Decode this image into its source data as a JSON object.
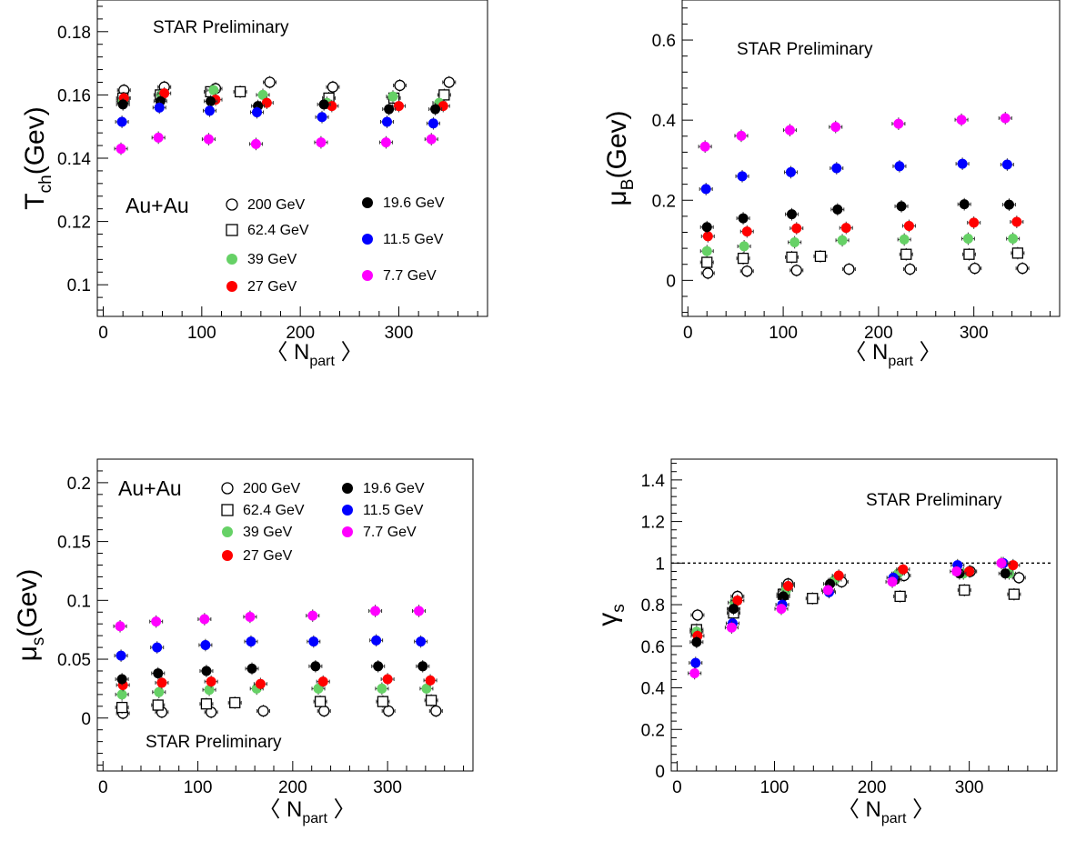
{
  "chart_data": [
    {
      "type": "scatter",
      "id": "tch",
      "ylabel_main": "T",
      "ylabel_sub": "ch",
      "ylabel_unit": "(Gev)",
      "xlabel_main": "N",
      "xlabel_sub": "part",
      "xlim": [
        -6,
        390
      ],
      "ylim": [
        0.09,
        0.19
      ],
      "xticks": [
        0,
        100,
        200,
        300
      ],
      "yticks": [
        0.1,
        0.12,
        0.14,
        0.16,
        0.18
      ],
      "ytick_labels": [
        "0.1",
        "0.12",
        "0.14",
        "0.16",
        "0.18"
      ],
      "ref_line": null,
      "annotations": [
        {
          "text": "STAR Preliminary"
        },
        {
          "text": "Au+Au"
        }
      ],
      "legend": [
        {
          "series": "s200",
          "label": "200 GeV"
        },
        {
          "series": "s62",
          "label": "62.4 GeV"
        },
        {
          "series": "s39",
          "label": "39 GeV"
        },
        {
          "series": "s27",
          "label": "27 GeV"
        },
        {
          "series": "s19",
          "label": "19.6 GeV"
        },
        {
          "series": "s11",
          "label": "11.5 GeV"
        },
        {
          "series": "s7",
          "label": "7.7 GeV"
        }
      ],
      "series": [
        {
          "key": "s200",
          "label": "200 GeV",
          "x": [
            21,
            62,
            114,
            169,
            233,
            301,
            351
          ],
          "y": [
            0.1615,
            0.1625,
            0.162,
            0.164,
            0.1625,
            0.163,
            0.164
          ]
        },
        {
          "key": "s62",
          "label": "62.4 GeV",
          "x": [
            20,
            58,
            109,
            139,
            229,
            295,
            346
          ],
          "y": [
            0.159,
            0.16,
            0.161,
            0.161,
            0.159,
            0.159,
            0.16
          ]
        },
        {
          "key": "s39",
          "label": "39 GeV",
          "x": [
            20,
            59,
            112,
            162,
            227,
            294,
            341
          ],
          "y": [
            0.158,
            0.16,
            0.1615,
            0.16,
            0.1575,
            0.1595,
            0.1575
          ]
        },
        {
          "key": "s27",
          "label": "27 GeV",
          "x": [
            21,
            62,
            114,
            166,
            232,
            300,
            345
          ],
          "y": [
            0.159,
            0.1605,
            0.1585,
            0.1575,
            0.1565,
            0.1565,
            0.1565
          ]
        },
        {
          "key": "s19",
          "label": "19.6 GeV",
          "x": [
            20,
            58,
            109,
            157,
            224,
            290,
            337
          ],
          "y": [
            0.157,
            0.158,
            0.158,
            0.1565,
            0.157,
            0.1555,
            0.1555
          ]
        },
        {
          "key": "s11",
          "label": "11.5 GeV",
          "x": [
            19,
            57,
            108,
            156,
            222,
            288,
            335
          ],
          "y": [
            0.1515,
            0.156,
            0.155,
            0.1545,
            0.153,
            0.1515,
            0.151
          ]
        },
        {
          "key": "s7",
          "label": "7.7 GeV",
          "x": [
            18,
            56,
            107,
            155,
            221,
            287,
            333
          ],
          "y": [
            0.143,
            0.1465,
            0.146,
            0.1445,
            0.145,
            0.145,
            0.146
          ]
        }
      ]
    },
    {
      "type": "scatter",
      "id": "mub",
      "ylabel_main": "μ",
      "ylabel_sub": "B",
      "ylabel_unit": "(Gev)",
      "xlabel_main": "N",
      "xlabel_sub": "part",
      "xlim": [
        -6,
        390
      ],
      "ylim": [
        -0.09,
        0.7
      ],
      "xticks": [
        0,
        100,
        200,
        300
      ],
      "yticks": [
        0,
        0.2,
        0.4,
        0.6
      ],
      "ytick_labels": [
        "0",
        "0.2",
        "0.4",
        "0.6"
      ],
      "ref_line": null,
      "annotations": [
        {
          "text": "STAR Preliminary"
        }
      ],
      "legend": [],
      "series": [
        {
          "key": "s200",
          "label": "200 GeV",
          "x": [
            21,
            62,
            114,
            169,
            233,
            301,
            351
          ],
          "y": [
            0.018,
            0.023,
            0.025,
            0.028,
            0.028,
            0.03,
            0.03
          ]
        },
        {
          "key": "s62",
          "label": "62.4 GeV",
          "x": [
            20,
            58,
            109,
            139,
            229,
            295,
            346
          ],
          "y": [
            0.045,
            0.055,
            0.058,
            0.06,
            0.065,
            0.065,
            0.068
          ]
        },
        {
          "key": "s39",
          "label": "39 GeV",
          "x": [
            20,
            59,
            112,
            162,
            227,
            294,
            341
          ],
          "y": [
            0.073,
            0.085,
            0.095,
            0.1,
            0.102,
            0.104,
            0.104
          ]
        },
        {
          "key": "s27",
          "label": "27 GeV",
          "x": [
            21,
            62,
            114,
            166,
            232,
            300,
            345
          ],
          "y": [
            0.11,
            0.122,
            0.13,
            0.131,
            0.136,
            0.144,
            0.146
          ]
        },
        {
          "key": "s19",
          "label": "19.6 GeV",
          "x": [
            20,
            58,
            109,
            157,
            224,
            290,
            337
          ],
          "y": [
            0.133,
            0.155,
            0.165,
            0.177,
            0.185,
            0.19,
            0.189
          ]
        },
        {
          "key": "s11",
          "label": "11.5 GeV",
          "x": [
            19,
            57,
            108,
            156,
            222,
            288,
            335
          ],
          "y": [
            0.228,
            0.26,
            0.27,
            0.28,
            0.285,
            0.291,
            0.289
          ]
        },
        {
          "key": "s7",
          "label": "7.7 GeV",
          "x": [
            18,
            56,
            107,
            155,
            221,
            287,
            333
          ],
          "y": [
            0.334,
            0.361,
            0.375,
            0.383,
            0.391,
            0.401,
            0.405
          ]
        }
      ]
    },
    {
      "type": "scatter",
      "id": "mus",
      "ylabel_main": "μ",
      "ylabel_sub": "s",
      "ylabel_unit": "(Gev)",
      "xlabel_main": "N",
      "xlabel_sub": "part",
      "xlim": [
        -6,
        390
      ],
      "ylim": [
        -0.045,
        0.22
      ],
      "xticks": [
        0,
        100,
        200,
        300
      ],
      "yticks": [
        0,
        0.05,
        0.1,
        0.15,
        0.2
      ],
      "ytick_labels": [
        "0",
        "0.05",
        "0.1",
        "0.15",
        "0.2"
      ],
      "ref_line": null,
      "annotations": [
        {
          "text": "Au+Au"
        },
        {
          "text": "STAR Preliminary"
        }
      ],
      "legend": [
        {
          "series": "s200",
          "label": "200 GeV"
        },
        {
          "series": "s62",
          "label": "62.4 GeV"
        },
        {
          "series": "s39",
          "label": "39 GeV"
        },
        {
          "series": "s27",
          "label": "27 GeV"
        },
        {
          "series": "s19",
          "label": "19.6 GeV"
        },
        {
          "series": "s11",
          "label": "11.5 GeV"
        },
        {
          "series": "s7",
          "label": "7.7 GeV"
        }
      ],
      "series": [
        {
          "key": "s200",
          "label": "200 GeV",
          "x": [
            21,
            62,
            114,
            169,
            233,
            301,
            351
          ],
          "y": [
            0.004,
            0.005,
            0.005,
            0.006,
            0.006,
            0.006,
            0.006
          ]
        },
        {
          "key": "s62",
          "label": "62.4 GeV",
          "x": [
            20,
            58,
            109,
            139,
            229,
            295,
            346
          ],
          "y": [
            0.009,
            0.011,
            0.012,
            0.013,
            0.014,
            0.014,
            0.015
          ]
        },
        {
          "key": "s39",
          "label": "39 GeV",
          "x": [
            20,
            59,
            112,
            162,
            227,
            294,
            341
          ],
          "y": [
            0.02,
            0.022,
            0.024,
            0.025,
            0.025,
            0.025,
            0.025
          ]
        },
        {
          "key": "s27",
          "label": "27 GeV",
          "x": [
            21,
            62,
            114,
            166,
            232,
            300,
            345
          ],
          "y": [
            0.028,
            0.03,
            0.031,
            0.029,
            0.031,
            0.033,
            0.032
          ]
        },
        {
          "key": "s19",
          "label": "19.6 GeV",
          "x": [
            20,
            58,
            109,
            157,
            224,
            290,
            337
          ],
          "y": [
            0.033,
            0.038,
            0.04,
            0.042,
            0.044,
            0.044,
            0.044
          ]
        },
        {
          "key": "s11",
          "label": "11.5 GeV",
          "x": [
            19,
            57,
            108,
            156,
            222,
            288,
            335
          ],
          "y": [
            0.053,
            0.06,
            0.062,
            0.065,
            0.065,
            0.066,
            0.065
          ]
        },
        {
          "key": "s7",
          "label": "7.7 GeV",
          "x": [
            18,
            56,
            107,
            155,
            221,
            287,
            333
          ],
          "y": [
            0.078,
            0.082,
            0.084,
            0.086,
            0.087,
            0.091,
            0.091
          ]
        }
      ]
    },
    {
      "type": "scatter",
      "id": "gammas",
      "ylabel_main": "γ",
      "ylabel_sub": "s",
      "ylabel_unit": "",
      "xlabel_main": "N",
      "xlabel_sub": "part",
      "xlim": [
        -6,
        390
      ],
      "ylim": [
        0,
        1.5
      ],
      "xticks": [
        0,
        100,
        200,
        300
      ],
      "yticks": [
        0,
        0.2,
        0.4,
        0.6,
        0.8,
        1,
        1.2,
        1.4
      ],
      "ytick_labels": [
        "0",
        "0.2",
        "0.4",
        "0.6",
        "0.8",
        "1",
        "1.2",
        "1.4"
      ],
      "ref_line": 1,
      "annotations": [
        {
          "text": "STAR Preliminary"
        }
      ],
      "legend": [],
      "series": [
        {
          "key": "s200",
          "label": "200 GeV",
          "x": [
            21,
            62,
            114,
            169,
            233,
            301,
            351
          ],
          "y": [
            0.75,
            0.84,
            0.9,
            0.91,
            0.94,
            0.96,
            0.93
          ]
        },
        {
          "key": "s62",
          "label": "62.4 GeV",
          "x": [
            20,
            58,
            109,
            139,
            229,
            295,
            346
          ],
          "y": [
            0.68,
            0.76,
            0.85,
            0.83,
            0.84,
            0.87,
            0.85
          ]
        },
        {
          "key": "s39",
          "label": "39 GeV",
          "x": [
            20,
            59,
            112,
            162,
            227,
            294,
            341
          ],
          "y": [
            0.67,
            0.81,
            0.87,
            0.92,
            0.95,
            0.95,
            0.95
          ]
        },
        {
          "key": "s27",
          "label": "27 GeV",
          "x": [
            21,
            62,
            114,
            166,
            232,
            300,
            345
          ],
          "y": [
            0.65,
            0.82,
            0.89,
            0.94,
            0.97,
            0.96,
            0.99
          ]
        },
        {
          "key": "s19",
          "label": "19.6 GeV",
          "x": [
            20,
            58,
            109,
            157,
            224,
            290,
            337
          ],
          "y": [
            0.62,
            0.78,
            0.84,
            0.9,
            0.92,
            0.95,
            0.95
          ]
        },
        {
          "key": "s11",
          "label": "11.5 GeV",
          "x": [
            19,
            57,
            108,
            156,
            222,
            288,
            335
          ],
          "y": [
            0.52,
            0.71,
            0.8,
            0.86,
            0.93,
            0.99,
            1.0
          ]
        },
        {
          "key": "s7",
          "label": "7.7 GeV",
          "x": [
            18,
            56,
            107,
            155,
            221,
            287,
            333
          ],
          "y": [
            0.47,
            0.69,
            0.78,
            0.87,
            0.91,
            0.96,
            1.0
          ]
        }
      ]
    }
  ],
  "series_styles": {
    "s200": {
      "marker": "circle-open",
      "color": "#000000"
    },
    "s62": {
      "marker": "square-open",
      "color": "#000000"
    },
    "s39": {
      "marker": "circle-filled",
      "color": "#66d166"
    },
    "s27": {
      "marker": "circle-filled",
      "color": "#ff0000"
    },
    "s19": {
      "marker": "circle-filled",
      "color": "#000000"
    },
    "s11": {
      "marker": "circle-filled",
      "color": "#0000ff"
    },
    "s7": {
      "marker": "circle-filled",
      "color": "#ff00ff"
    }
  }
}
